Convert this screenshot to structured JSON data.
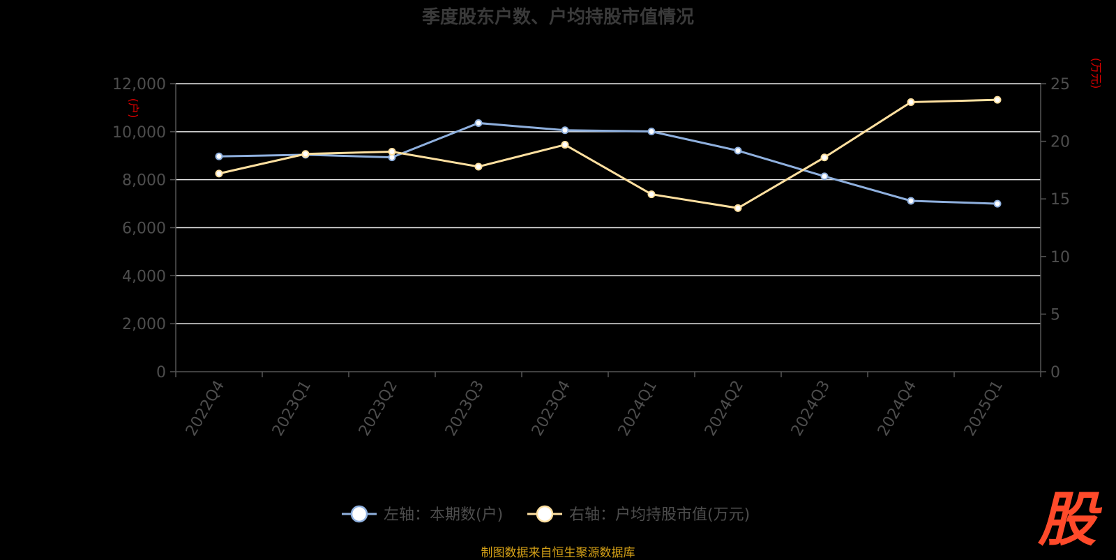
{
  "title": "季度股东户数、户均持股市值情况",
  "source_text": "制图数据来自恒生聚源数据库",
  "logo_text": "股",
  "chart_data": {
    "type": "line",
    "categories": [
      "2022Q4",
      "2023Q1",
      "2023Q2",
      "2023Q3",
      "2023Q4",
      "2024Q1",
      "2024Q2",
      "2024Q3",
      "2024Q4",
      "2025Q1"
    ],
    "left_axis": {
      "unit_label": "(户)",
      "ylim": [
        0,
        12000
      ],
      "ticks": [
        "0",
        "2,000",
        "4,000",
        "6,000",
        "8,000",
        "10,000",
        "12,000"
      ],
      "tick_values": [
        0,
        2000,
        4000,
        6000,
        8000,
        10000,
        12000
      ]
    },
    "right_axis": {
      "unit_label": "(万元)",
      "ylim": [
        0,
        25
      ],
      "ticks": [
        "0",
        "5",
        "10",
        "15",
        "20",
        "25"
      ],
      "tick_values": [
        0,
        5,
        10,
        15,
        20,
        25
      ]
    },
    "series": [
      {
        "name": "左轴：本期数(户)",
        "axis": "left",
        "color": "#8fb0de",
        "values": [
          8970,
          9040,
          8930,
          10360,
          10060,
          10010,
          9210,
          8140,
          7120,
          7000
        ]
      },
      {
        "name": "右轴：户均持股市值(万元)",
        "axis": "right",
        "color": "#ffe0a0",
        "values": [
          17.2,
          18.9,
          19.1,
          17.8,
          19.7,
          15.4,
          14.2,
          18.6,
          23.4,
          23.6
        ]
      }
    ],
    "grid": true,
    "legend_position": "bottom"
  }
}
